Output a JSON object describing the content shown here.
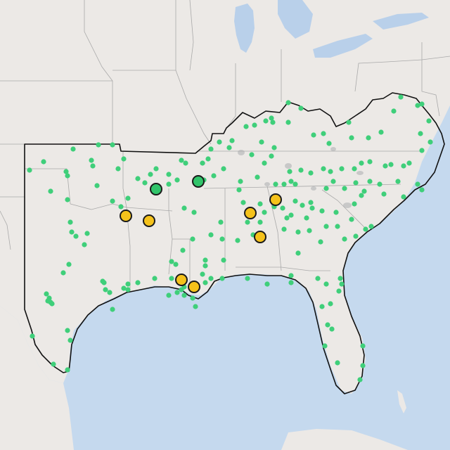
{
  "map": {
    "colors": {
      "land": "#ece9e6",
      "water": "#c5d9ee",
      "state_border": "#a9a9a9",
      "region_outline": "#111111",
      "small_dot": "#3fcf7a",
      "marker_green": "#31c46a",
      "marker_yellow": "#f5c21b"
    },
    "markers": {
      "green": [
        {
          "id": "ozarks-north"
        },
        {
          "id": "memphis-area"
        }
      ],
      "yellow": [
        {
          "id": "arkansas-west"
        },
        {
          "id": "arkansas-central"
        },
        {
          "id": "alabama-north"
        },
        {
          "id": "alabama-east"
        },
        {
          "id": "alabama-central"
        },
        {
          "id": "louisiana-south"
        },
        {
          "id": "new-orleans"
        }
      ]
    }
  }
}
